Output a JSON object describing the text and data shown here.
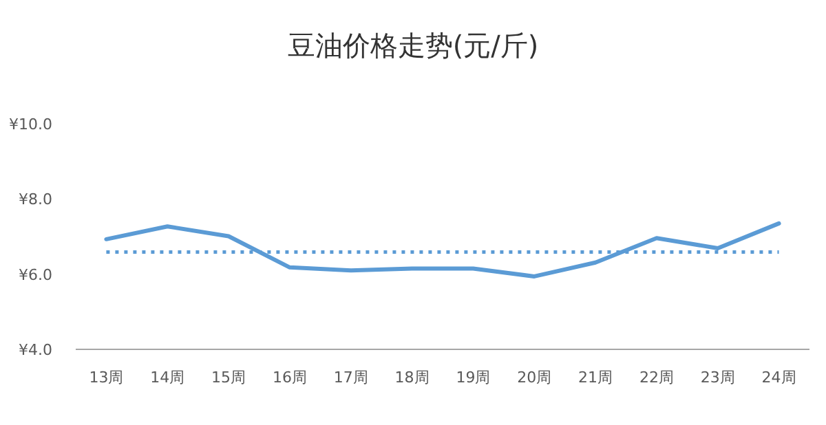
{
  "chart_data": {
    "type": "line",
    "title": "豆油价格走势(元/斤)",
    "categories": [
      "13周",
      "14周",
      "15周",
      "16周",
      "17周",
      "18周",
      "19周",
      "20周",
      "21周",
      "22周",
      "23周",
      "24周"
    ],
    "series": [
      {
        "color": "#5b9bd5",
        "values": [
          6.93,
          7.27,
          7.01,
          6.18,
          6.1,
          6.15,
          6.15,
          5.94,
          6.31,
          6.96,
          6.69,
          7.35
        ]
      }
    ],
    "ylim": [
      4,
      10
    ],
    "yticks": [
      {
        "value": 4,
        "label": "¥4.0"
      },
      {
        "value": 6,
        "label": "¥6.0"
      },
      {
        "value": 8,
        "label": "¥8.0"
      },
      {
        "value": 10,
        "label": "¥10.0"
      }
    ],
    "ref_lines": [
      {
        "axis": "y",
        "value": 6.59,
        "color": "#5b9bd5",
        "line_style": "dotted"
      }
    ],
    "grid": false,
    "marker": "none",
    "line_style": "solid"
  }
}
